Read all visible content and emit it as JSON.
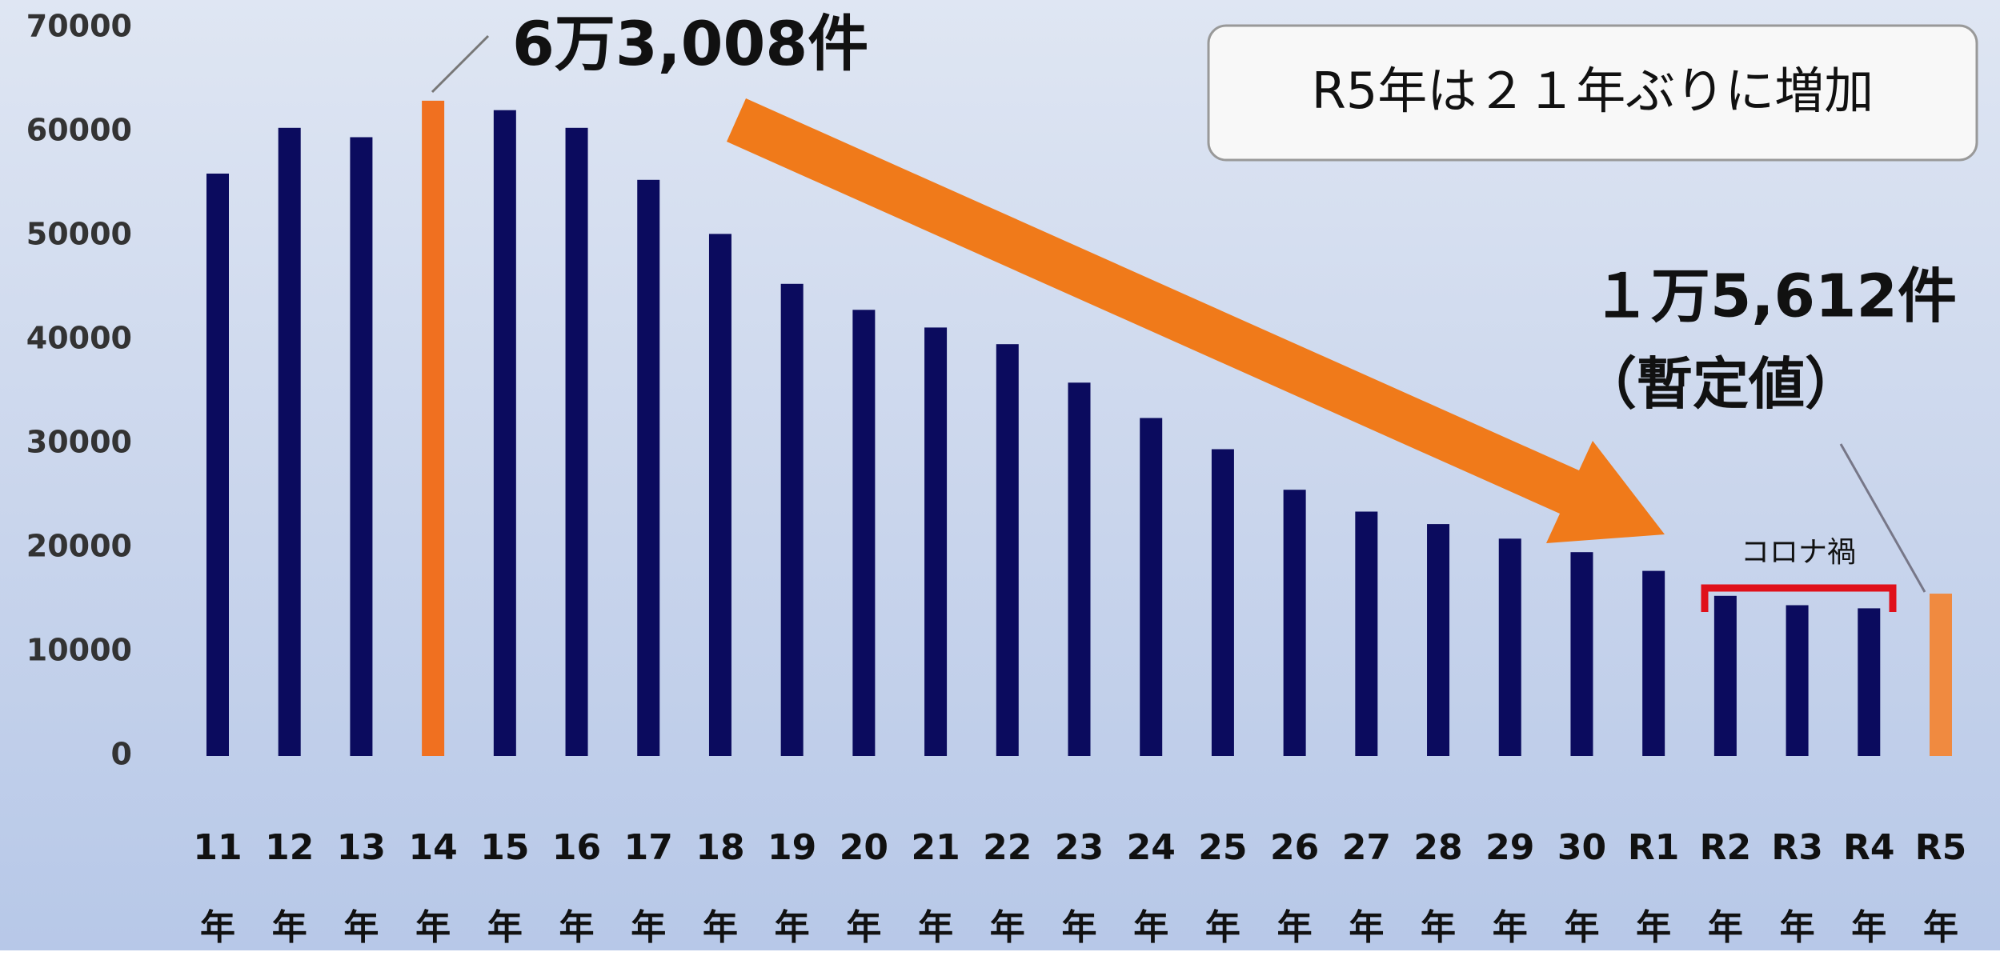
{
  "chart_data": {
    "type": "bar",
    "categories": [
      "11年",
      "12年",
      "13年",
      "14年",
      "15年",
      "16年",
      "17年",
      "18年",
      "19年",
      "20年",
      "21年",
      "22年",
      "23年",
      "24年",
      "25年",
      "26年",
      "27年",
      "28年",
      "29年",
      "30年",
      "R1年",
      "R2年",
      "R3年",
      "R4年",
      "R5年"
    ],
    "values": [
      56000,
      60400,
      59500,
      63008,
      62100,
      60400,
      55400,
      50200,
      45400,
      42900,
      41200,
      39600,
      35900,
      32500,
      29500,
      25600,
      23500,
      22300,
      20900,
      19600,
      17800,
      15400,
      14500,
      14200,
      15612
    ],
    "colors": [
      "#0b0b5e",
      "#0b0b5e",
      "#0b0b5e",
      "#f07020",
      "#0b0b5e",
      "#0b0b5e",
      "#0b0b5e",
      "#0b0b5e",
      "#0b0b5e",
      "#0b0b5e",
      "#0b0b5e",
      "#0b0b5e",
      "#0b0b5e",
      "#0b0b5e",
      "#0b0b5e",
      "#0b0b5e",
      "#0b0b5e",
      "#0b0b5e",
      "#0b0b5e",
      "#0b0b5e",
      "#0b0b5e",
      "#0b0b5e",
      "#0b0b5e",
      "#0b0b5e",
      "#f08a40"
    ],
    "ylim": [
      0,
      70000
    ],
    "yticks": [
      0,
      10000,
      20000,
      30000,
      40000,
      50000,
      60000,
      70000
    ],
    "grid": false,
    "annotations": {
      "peak": "6万3,008件",
      "note": "R5年は２１年ぶりに増加",
      "latest": "１万5,612件",
      "provisional": "（暫定値）",
      "corona": "コロナ禍"
    }
  }
}
